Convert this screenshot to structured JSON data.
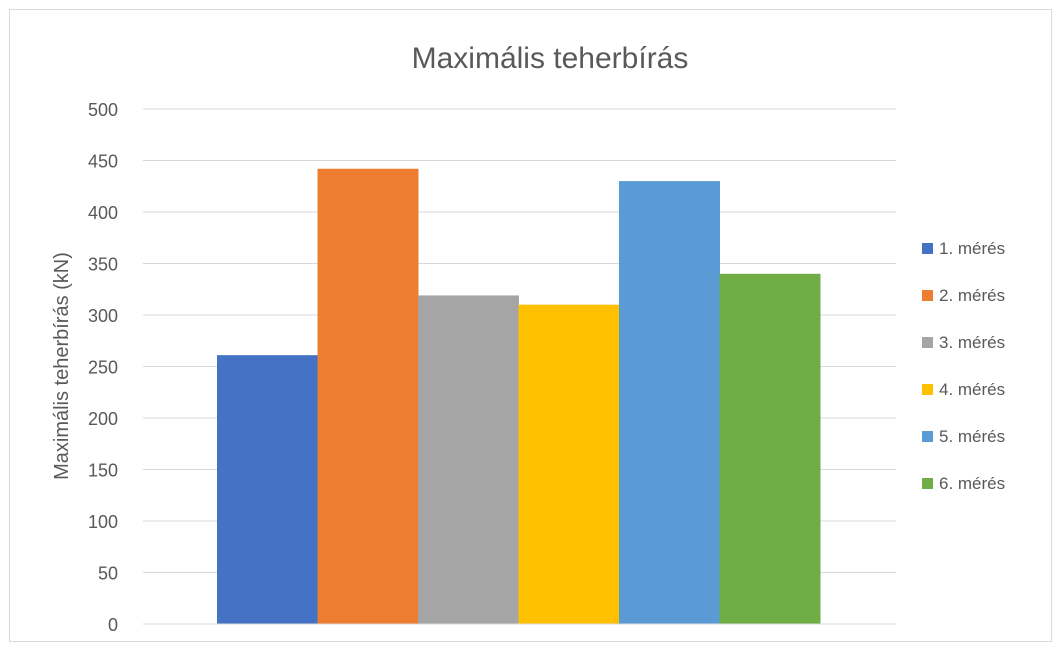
{
  "chart_data": {
    "type": "bar",
    "title": "Maximális teherbírás",
    "ylabel": "Maximális teherbírás (kN)",
    "xlabel": "",
    "ylim": [
      0,
      500
    ],
    "yticks": [
      0,
      50,
      100,
      150,
      200,
      250,
      300,
      350,
      400,
      450,
      500
    ],
    "grid": true,
    "legend_position": "right",
    "series": [
      {
        "name": "1. mérés",
        "value": 261,
        "color": "#4472C4"
      },
      {
        "name": "2. mérés",
        "value": 442,
        "color": "#ED7D31"
      },
      {
        "name": "3. mérés",
        "value": 319,
        "color": "#A5A5A5"
      },
      {
        "name": "4. mérés",
        "value": 310,
        "color": "#FFC000"
      },
      {
        "name": "5. mérés",
        "value": 430,
        "color": "#5B9BD5"
      },
      {
        "name": "6. mérés",
        "value": 340,
        "color": "#70AD47"
      }
    ]
  }
}
